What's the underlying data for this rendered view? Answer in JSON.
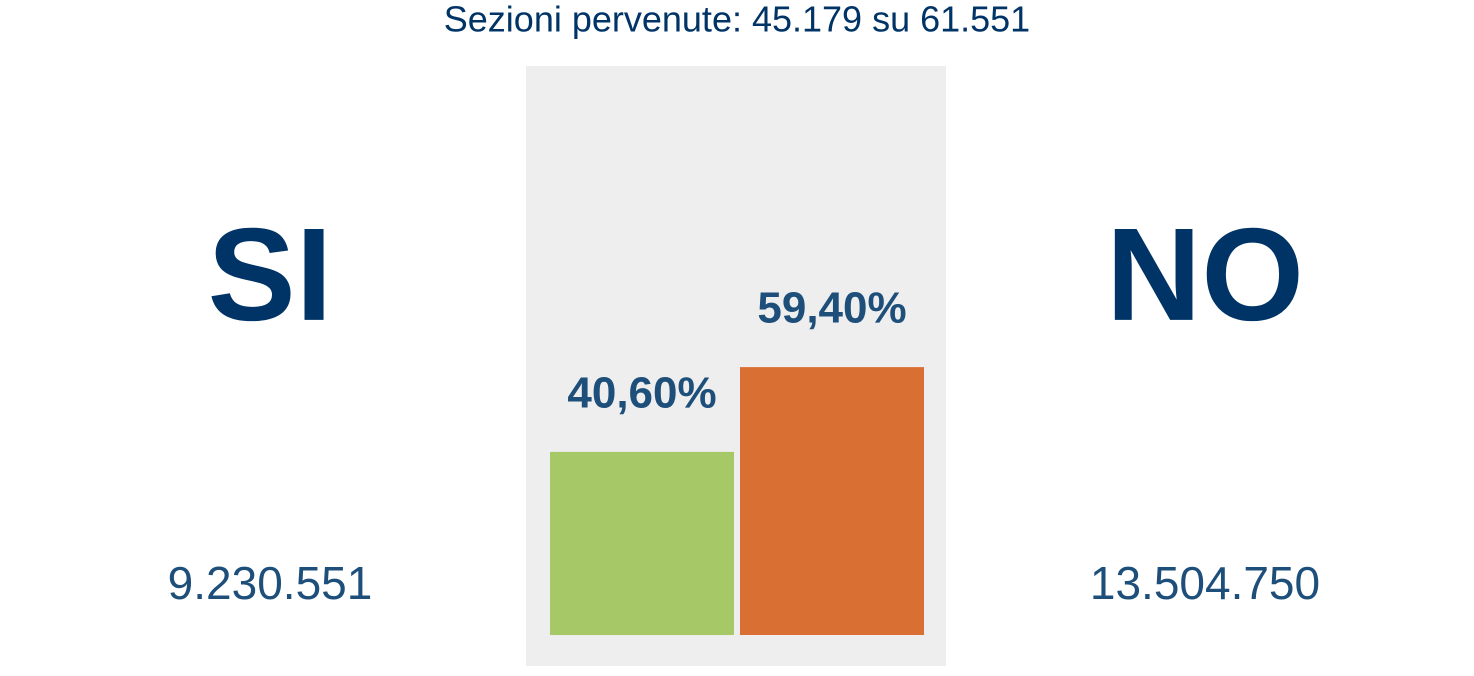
{
  "chart_data": {
    "type": "bar",
    "title": "Sezioni pervenute: 45.179 su 61.551",
    "categories": [
      "SI",
      "NO"
    ],
    "values": [
      40.6,
      59.4
    ],
    "value_labels": [
      "40,60%",
      "59,40%"
    ],
    "votes": [
      "9.230.551",
      "13.504.750"
    ],
    "colors": [
      "#a6c867",
      "#d96f32"
    ]
  }
}
